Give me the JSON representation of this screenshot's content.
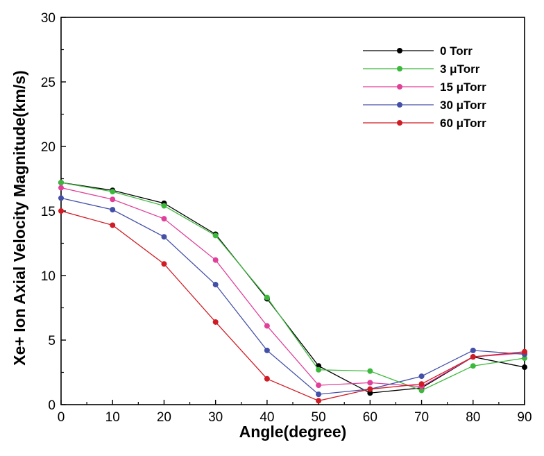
{
  "chart_data": {
    "type": "line",
    "title": "",
    "xlabel": "Angle(degree)",
    "ylabel": "Xe+ Ion Axial Velocity Magnitude(km/s)",
    "xlim": [
      0,
      90
    ],
    "ylim": [
      0,
      30
    ],
    "x_ticks": [
      "0",
      "10",
      "20",
      "30",
      "40",
      "50",
      "60",
      "70",
      "80",
      "90"
    ],
    "y_ticks": [
      "0",
      "5",
      "10",
      "15",
      "20",
      "25",
      "30"
    ],
    "grid": false,
    "legend_position": "top-right",
    "x": [
      0,
      10,
      20,
      30,
      40,
      50,
      60,
      70,
      80,
      90
    ],
    "series": [
      {
        "name": "0 Torr",
        "color": "#000000",
        "values": [
          17.2,
          16.6,
          15.6,
          13.2,
          8.2,
          3.0,
          0.9,
          1.3,
          3.7,
          2.9
        ]
      },
      {
        "name": "3 μTorr",
        "color": "#3cb83c",
        "values": [
          17.2,
          16.5,
          15.4,
          13.1,
          8.3,
          2.7,
          2.6,
          1.1,
          3.0,
          3.6
        ]
      },
      {
        "name": "15 μTorr",
        "color": "#e0409a",
        "values": [
          16.8,
          15.9,
          14.4,
          11.2,
          6.1,
          1.5,
          1.7,
          1.4,
          3.7,
          4.0
        ]
      },
      {
        "name": "30 μTorr",
        "color": "#4450a8",
        "values": [
          16.0,
          15.1,
          13.0,
          9.3,
          4.2,
          0.8,
          1.2,
          2.2,
          4.2,
          3.9
        ]
      },
      {
        "name": "60 μTorr",
        "color": "#d01c24",
        "values": [
          15.0,
          13.9,
          10.9,
          6.4,
          2.0,
          0.3,
          1.2,
          1.6,
          3.7,
          4.1
        ]
      }
    ]
  }
}
